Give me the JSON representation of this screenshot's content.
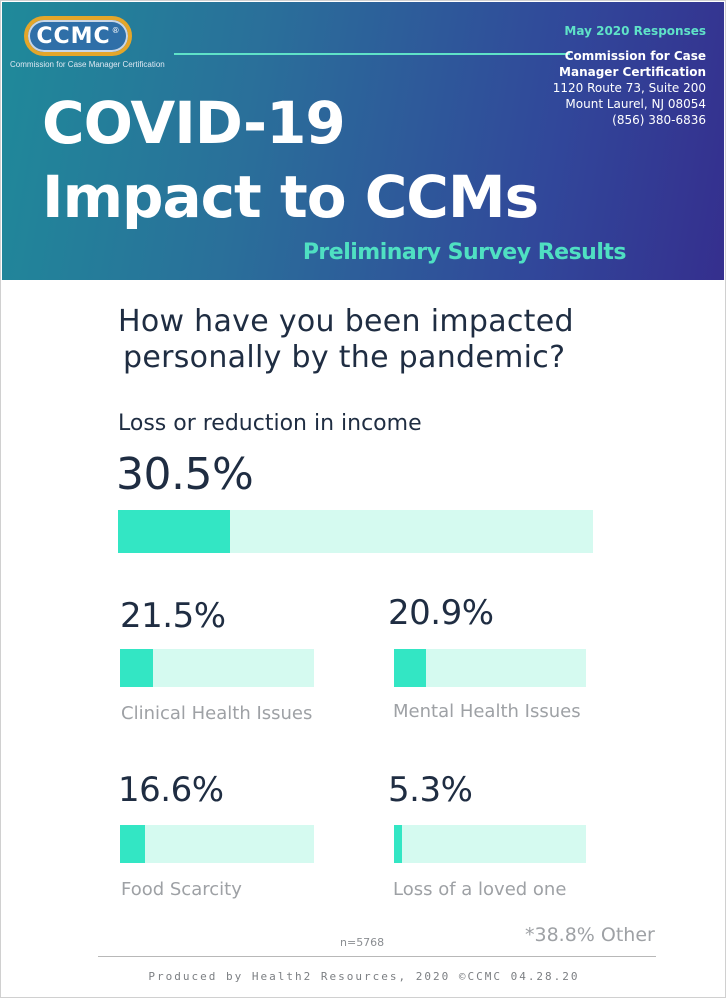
{
  "header": {
    "logo_text": "CCMC",
    "logo_trademark": "®",
    "logo_subtitle": "Commission for Case Manager Certification",
    "response_date": "May 2020 Responses",
    "org_name_line1": "Commission for Case",
    "org_name_line2": "Manager Certification",
    "address_line1": "1120 Route 73, Suite 200",
    "address_line2": "Mount Laurel, NJ 08054",
    "phone": "(856) 380-6836",
    "title_line1": "COVID-19",
    "title_line2": "Impact to CCMs",
    "subtitle": "Preliminary Survey Results"
  },
  "question": {
    "line1": "How have you been impacted",
    "line2": "personally by the pandemic?"
  },
  "colors": {
    "bar_fill": "#33e6c4",
    "bar_track": "#d5faf0",
    "heading_text": "#1f2d42",
    "accent_green": "#4fe0c2"
  },
  "chart_data": {
    "type": "bar",
    "unit": "%",
    "categories": [
      "Loss or reduction in income",
      "Clinical Health Issues",
      "Mental Health Issues",
      "Food Scarcity",
      "Loss of a loved one"
    ],
    "values": [
      30.5,
      21.5,
      20.9,
      16.6,
      5.3
    ],
    "value_labels": [
      "30.5%",
      "21.5%",
      "20.9%",
      "16.6%",
      "5.3%"
    ],
    "ylim": [
      0,
      100
    ]
  },
  "notes": {
    "other": "*38.8% Other",
    "sample_size": "n=5768"
  },
  "footer": {
    "text": "Produced by Health2 Resources, 2020 ©CCMC 04.28.20"
  }
}
